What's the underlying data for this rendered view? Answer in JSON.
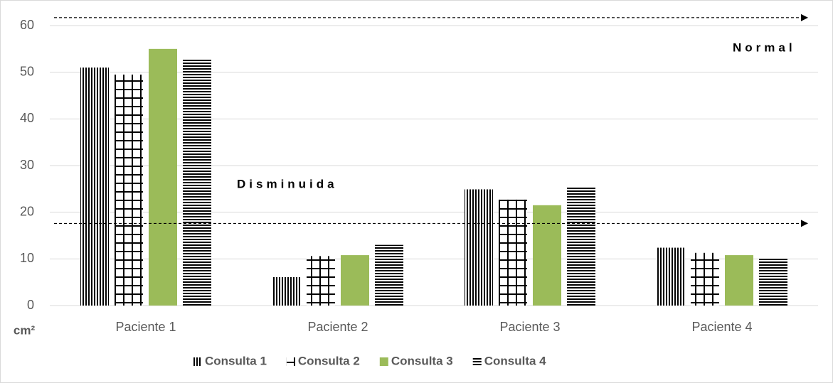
{
  "chart_data": {
    "type": "bar",
    "categories": [
      "Paciente 1",
      "Paciente 2",
      "Paciente 3",
      "Paciente 4"
    ],
    "series": [
      {
        "name": "Consulta 1",
        "color": "#000000",
        "pattern": "vertical",
        "values": [
          51,
          6.1,
          24.9,
          12.4
        ]
      },
      {
        "name": "Consulta 2",
        "color": "#000000",
        "pattern": "grid",
        "values": [
          49.5,
          10.6,
          22.7,
          11.3
        ]
      },
      {
        "name": "Consulta 3",
        "color": "#9bbb59",
        "pattern": "solid",
        "values": [
          55,
          10.8,
          21.5,
          10.8
        ]
      },
      {
        "name": "Consulta 4",
        "color": "#000000",
        "pattern": "horizontal",
        "values": [
          52.7,
          13.0,
          25.3,
          10.0
        ]
      }
    ],
    "y_label": "cm²",
    "ylim": [
      0,
      60
    ],
    "yticks": [
      0,
      10,
      20,
      30,
      40,
      50,
      60
    ],
    "grid": true,
    "reference_lines": [
      {
        "value": 61.7,
        "label": "Normal"
      },
      {
        "value": 17.6,
        "label": "Disminuida"
      }
    ],
    "legend": "bottom"
  }
}
